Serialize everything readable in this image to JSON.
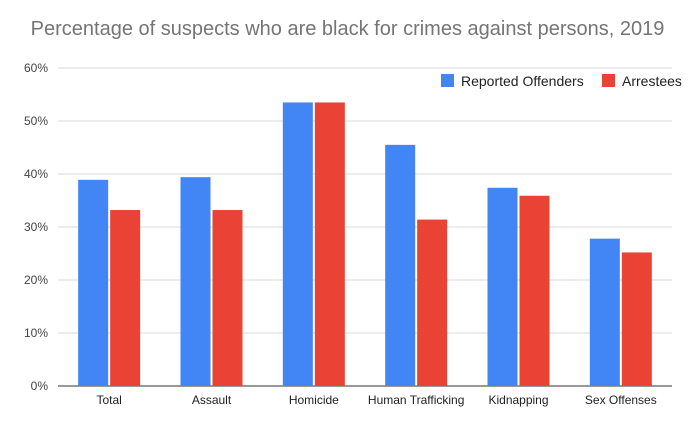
{
  "chart_data": {
    "type": "bar",
    "title": "Percentage of suspects who are black for crimes against persons, 2019",
    "xlabel": "",
    "ylabel": "",
    "ylim": [
      0,
      60
    ],
    "yticks": [
      0,
      10,
      20,
      30,
      40,
      50,
      60
    ],
    "ytick_labels": [
      "0%",
      "10%",
      "20%",
      "30%",
      "40%",
      "50%",
      "60%"
    ],
    "grid": true,
    "legend_position": "top-right",
    "categories": [
      "Total",
      "Assault",
      "Homicide",
      "Human Trafficking",
      "Kidnapping",
      "Sex Offenses"
    ],
    "series": [
      {
        "name": "Reported Offenders",
        "color": "#4285f4",
        "values": [
          38.9,
          39.4,
          53.5,
          45.5,
          37.4,
          27.8
        ]
      },
      {
        "name": "Arrestees",
        "color": "#ea4335",
        "values": [
          33.2,
          33.2,
          53.5,
          31.4,
          35.9,
          25.2
        ]
      }
    ]
  }
}
